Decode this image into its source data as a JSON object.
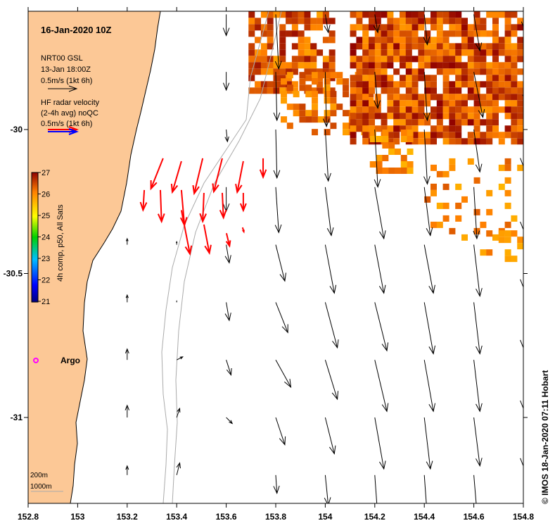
{
  "title": "16-Jan-2020 10Z",
  "model_legend": {
    "line1": "NRT00 GSL",
    "line2": "13-Jan 18:00Z",
    "line3": "0.5m/s (1kt 6h)",
    "ref_speed": 0.5
  },
  "radar_legend": {
    "line1": "HF radar velocity",
    "line2": "(2-4h avg) noQC",
    "line3": "0.5m/s (1kt 6h)",
    "ref_speed": 0.5
  },
  "colorbar": {
    "label": "4h comp, p50, All Sats",
    "min": 21,
    "max": 27,
    "ticks": [
      "21",
      "22",
      "23",
      "24",
      "25",
      "26",
      "27"
    ]
  },
  "isobaths": {
    "shallow": "200m",
    "deep": "1000m",
    "color": "#aaaaaa"
  },
  "argo": {
    "label": "Argo",
    "color": "#ff00ff",
    "lon": 152.83,
    "lat": -30.805
  },
  "credit": "© IMOS 18-Jan-2020 07:11 Hobart",
  "colors": {
    "land": "#fcc896",
    "radar_arrow": "#ff0000",
    "model_arrow": "#000000"
  },
  "chart_data": {
    "type": "vector-map",
    "xlim": [
      152.8,
      154.8
    ],
    "ylim": [
      -31.3,
      -29.59
    ],
    "xticks": [
      "152.8",
      "153",
      "153.2",
      "153.4",
      "153.6",
      "153.8",
      "154",
      "154.2",
      "154.4",
      "154.6",
      "154.8"
    ],
    "yticks": [
      {
        "label": "-30",
        "value": -30
      },
      {
        "label": "-30.5",
        "value": -30.5
      },
      {
        "label": "-31",
        "value": -31
      }
    ],
    "model_grid": {
      "lons": [
        153.2,
        153.4,
        153.6,
        153.8,
        154.0,
        154.2,
        154.4,
        154.6,
        154.8
      ],
      "lats": [
        -29.6,
        -29.8,
        -30.0,
        -30.2,
        -30.4,
        -30.6,
        -30.8,
        -31.0,
        -31.2
      ],
      "u": [
        [
          0,
          0,
          0,
          0.05,
          0.05,
          0.05,
          0.05,
          0.1,
          0
        ],
        [
          0,
          0,
          0,
          0.02,
          0.02,
          0.05,
          0.05,
          0.15,
          0.05
        ],
        [
          0,
          0,
          0.02,
          0.02,
          0.05,
          0.05,
          0.05,
          0.1,
          0
        ],
        [
          0,
          0,
          0,
          0.05,
          0.1,
          0.15,
          0.1,
          0.05,
          0
        ],
        [
          0,
          0,
          0.05,
          0.15,
          0.15,
          0.15,
          0.15,
          0.1,
          0
        ],
        [
          0,
          0,
          0.05,
          0.2,
          0.2,
          0.2,
          0.15,
          0.1,
          0
        ],
        [
          0,
          0.1,
          0.08,
          0.25,
          0.2,
          0.2,
          0.15,
          0.1,
          0
        ],
        [
          0,
          0.05,
          0.1,
          0.15,
          0.15,
          0.15,
          0.1,
          0.1,
          0
        ],
        [
          0,
          0.05,
          0,
          0.02,
          0.05,
          0.05,
          0.05,
          0.05,
          0
        ]
      ],
      "v": [
        [
          0,
          0,
          -0.35,
          -0.9,
          -0.3,
          -0.3,
          -0.5,
          -0.6,
          -0.2
        ],
        [
          0,
          0,
          -0.3,
          -0.8,
          -0.9,
          -0.6,
          -0.8,
          -0.75,
          -0.5
        ],
        [
          0,
          0,
          -0.2,
          -0.8,
          -0.85,
          -0.95,
          -0.9,
          -0.7,
          -0.6
        ],
        [
          0,
          0,
          -0.4,
          -0.75,
          -0.8,
          -0.85,
          -0.8,
          -0.85,
          -0.7
        ],
        [
          0.1,
          0.05,
          -0.3,
          -0.6,
          -0.8,
          -0.8,
          -0.8,
          -0.85,
          -0.7
        ],
        [
          0.12,
          0.02,
          -0.3,
          -0.5,
          -0.75,
          -0.8,
          -0.85,
          -0.85,
          -0.75
        ],
        [
          0.18,
          0.05,
          -0.25,
          -0.45,
          -0.65,
          -0.85,
          -0.85,
          -0.85,
          -0.8
        ],
        [
          0.2,
          0.15,
          -0.1,
          -0.45,
          -0.6,
          -0.85,
          -0.85,
          -0.8,
          -0.8
        ],
        [
          0.15,
          0.2,
          0,
          -0.3,
          -0.5,
          -0.7,
          -0.7,
          -0.6,
          -0.6
        ]
      ]
    },
    "radar_vectors": [
      [
        153.345,
        -30.1,
        -0.2,
        -0.5
      ],
      [
        153.419,
        -30.11,
        -0.15,
        -0.51
      ],
      [
        153.505,
        -30.1,
        -0.14,
        -0.58
      ],
      [
        153.584,
        -30.1,
        -0.14,
        -0.55
      ],
      [
        153.669,
        -30.11,
        -0.1,
        -0.51
      ],
      [
        153.749,
        -30.1,
        0,
        -0.31
      ],
      [
        153.269,
        -30.21,
        -0.02,
        -0.33
      ],
      [
        153.334,
        -30.21,
        0.02,
        -0.52
      ],
      [
        153.419,
        -30.21,
        0.05,
        -0.58
      ],
      [
        153.51,
        -30.22,
        -0.02,
        -0.47
      ],
      [
        153.584,
        -30.22,
        0.02,
        -0.41
      ],
      [
        153.669,
        -30.22,
        0,
        -0.29
      ],
      [
        153.419,
        -30.28,
        0.14,
        -0.72
      ],
      [
        153.51,
        -30.33,
        0.09,
        -0.47
      ],
      [
        153.601,
        -30.36,
        0.05,
        -0.21
      ],
      [
        153.666,
        -30.34,
        0.02,
        -0.07
      ]
    ],
    "sst_regions": [
      {
        "lon": [
          153.69,
          154.03
        ],
        "lat": [
          -29.87,
          -29.59
        ],
        "temp": [
          25.8,
          26.9
        ],
        "density": 0.75
      },
      {
        "lon": [
          153.82,
          154.18
        ],
        "lat": [
          -30.0,
          -29.8
        ],
        "temp": [
          25.8,
          26.6
        ],
        "density": 0.55
      },
      {
        "lon": [
          154.1,
          154.8
        ],
        "lat": [
          -30.04,
          -29.59
        ],
        "temp": [
          25.9,
          27.0
        ],
        "density": 0.85
      },
      {
        "lon": [
          154.18,
          154.35
        ],
        "lat": [
          -30.15,
          -30.0
        ],
        "temp": [
          25.6,
          26.3
        ],
        "density": 0.6
      },
      {
        "lon": [
          154.4,
          154.8
        ],
        "lat": [
          -30.38,
          -30.1
        ],
        "temp": [
          25.6,
          26.4
        ],
        "density": 0.2
      },
      {
        "lon": [
          154.6,
          154.8
        ],
        "lat": [
          -30.45,
          -30.35
        ],
        "temp": [
          25.7,
          26.3
        ],
        "density": 0.35
      }
    ]
  }
}
